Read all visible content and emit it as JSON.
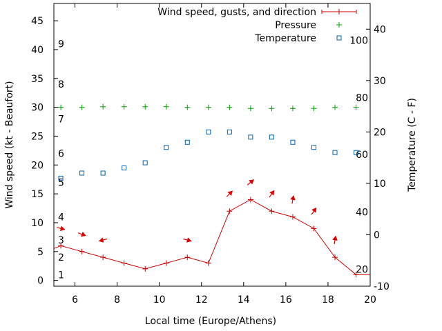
{
  "chart_data": {
    "type": "line",
    "xlabel": "Local time (Europe/Athens)",
    "ylabel_left": "Wind speed (kt - Beaufort)",
    "ylabel_right": "Temperature (C - F)",
    "xlim": [
      5,
      20
    ],
    "ylim_left": [
      -1,
      48
    ],
    "ylim_right": [
      -10,
      45
    ],
    "x_ticks": [
      "6",
      "8",
      "10",
      "12",
      "14",
      "16",
      "18",
      "20"
    ],
    "y_ticks_left": [
      "0",
      "5",
      "10",
      "15",
      "20",
      "25",
      "30",
      "35",
      "40",
      "45"
    ],
    "y_ticks_right": [
      "-10",
      "0",
      "10",
      "20",
      "30",
      "40"
    ],
    "beaufort_labels": [
      {
        "label": "1",
        "kt": 1
      },
      {
        "label": "2",
        "kt": 4
      },
      {
        "label": "3",
        "kt": 7
      },
      {
        "label": "4",
        "kt": 11
      },
      {
        "label": "5",
        "kt": 17
      },
      {
        "label": "6",
        "kt": 22
      },
      {
        "label": "7",
        "kt": 28
      },
      {
        "label": "8",
        "kt": 34
      },
      {
        "label": "9",
        "kt": 41
      }
    ],
    "fahrenheit_labels": [
      {
        "label": "20",
        "celsius": -6.7
      },
      {
        "label": "40",
        "celsius": 4.4
      },
      {
        "label": "60",
        "celsius": 15.6
      },
      {
        "label": "80",
        "celsius": 26.7
      },
      {
        "label": "100",
        "celsius": 37.8
      }
    ],
    "legend_position": "top-right",
    "series": [
      {
        "name": "Wind speed, gusts, and direction",
        "axis": "left",
        "color": "#cc0000",
        "marker": "plus",
        "x": [
          5.33,
          6.33,
          7.33,
          8.33,
          9.33,
          10.33,
          11.33,
          12.33,
          13.33,
          14.33,
          15.33,
          16.33,
          17.33,
          18.33,
          19.33
        ],
        "y": [
          6,
          5,
          4,
          3,
          2,
          3,
          4,
          3,
          12,
          14,
          12,
          11,
          9,
          4,
          1
        ]
      },
      {
        "name": "Pressure",
        "axis": "left",
        "color": "#00a000",
        "marker": "plus",
        "x": [
          5.33,
          6.33,
          7.33,
          8.33,
          9.33,
          10.33,
          11.33,
          12.33,
          13.33,
          14.33,
          15.33,
          16.33,
          17.33,
          18.33,
          19.33
        ],
        "y": [
          30,
          30,
          30.1,
          30.1,
          30.1,
          30.1,
          30,
          30,
          30,
          29.8,
          29.8,
          29.8,
          29.8,
          30,
          30
        ]
      },
      {
        "name": "Temperature",
        "axis": "right",
        "color": "#0060b0",
        "marker": "square",
        "x": [
          5.33,
          6.33,
          7.33,
          8.33,
          9.33,
          10.33,
          11.33,
          12.33,
          13.33,
          14.33,
          15.33,
          16.33,
          17.33,
          18.33,
          19.33
        ],
        "y": [
          11,
          12,
          12,
          13,
          14,
          17,
          18,
          20,
          20,
          19,
          19,
          18,
          17,
          16,
          16
        ]
      }
    ],
    "wind_directions": [
      {
        "x": 5.33,
        "toward_deg": 105
      },
      {
        "x": 6.33,
        "toward_deg": 110
      },
      {
        "x": 7.33,
        "toward_deg": 255
      },
      {
        "x": 11.33,
        "toward_deg": 105
      },
      {
        "x": 13.33,
        "toward_deg": 45
      },
      {
        "x": 14.33,
        "toward_deg": 50
      },
      {
        "x": 15.33,
        "toward_deg": 35
      },
      {
        "x": 16.33,
        "toward_deg": 10
      },
      {
        "x": 17.33,
        "toward_deg": 35
      },
      {
        "x": 18.33,
        "toward_deg": 10
      }
    ]
  }
}
